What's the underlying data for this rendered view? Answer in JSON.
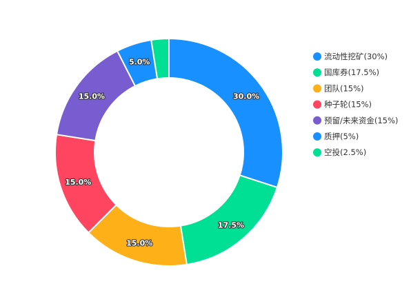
{
  "chart_data": {
    "type": "pie",
    "variant": "donut",
    "legend_position": "right",
    "slices": [
      {
        "label": "流动性挖矿(30%)",
        "value": 30.0,
        "data_label": "30.0%",
        "color": "#1890ff"
      },
      {
        "label": "国库券(17.5%)",
        "value": 17.5,
        "data_label": "17.5%",
        "color": "#00e095"
      },
      {
        "label": "团队(15%)",
        "value": 15.0,
        "data_label": "15.0%",
        "color": "#feb019"
      },
      {
        "label": "种子轮(15%)",
        "value": 15.0,
        "data_label": "15.0%",
        "color": "#ff4560"
      },
      {
        "label": "预留/未来资金(15%)",
        "value": 15.0,
        "data_label": "15.0%",
        "color": "#775dd0"
      },
      {
        "label": "质押(5%)",
        "value": 5.0,
        "data_label": "5.0%",
        "color": "#1890ff"
      },
      {
        "label": "空投(2.5%)",
        "value": 2.5,
        "data_label": "",
        "color": "#00e095"
      }
    ]
  }
}
